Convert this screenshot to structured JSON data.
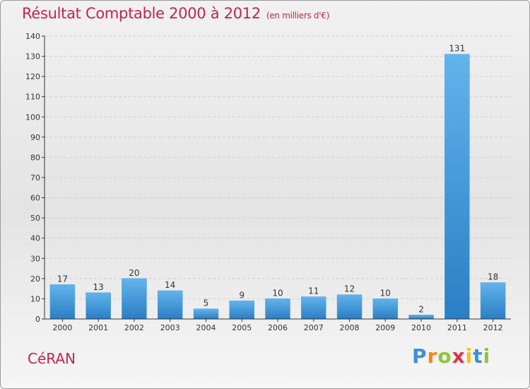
{
  "title": "Résultat Comptable 2000 à 2012",
  "subtitle": "(en milliers d'€)",
  "commune": "CéRAN",
  "logo": {
    "letters": [
      "P",
      "r",
      "o",
      "x",
      "i",
      "t",
      "i"
    ],
    "colors": [
      "#3f8fd6",
      "#f08a1c",
      "#8cc63f",
      "#e0334a",
      "#f0c419",
      "#3f8fd6",
      "#8cc63f"
    ]
  },
  "colors": {
    "bar_light": "#62b4ec",
    "bar_dark": "#2a7ec4",
    "title": "#c0254f",
    "grid": "#cfcfcf",
    "axis": "#333333"
  },
  "chart_data": {
    "type": "bar",
    "title": "Résultat Comptable 2000 à 2012",
    "subtitle": "(en milliers d'€)",
    "xlabel": "",
    "ylabel": "",
    "ylim": [
      0,
      140
    ],
    "yticks": [
      0,
      10,
      20,
      30,
      40,
      50,
      60,
      70,
      80,
      90,
      100,
      110,
      120,
      130,
      140
    ],
    "categories": [
      "2000",
      "2001",
      "2002",
      "2003",
      "2004",
      "2005",
      "2006",
      "2007",
      "2008",
      "2009",
      "2010",
      "2011",
      "2012"
    ],
    "values": [
      17,
      13,
      20,
      14,
      5,
      9,
      10,
      11,
      12,
      10,
      2,
      131,
      18
    ],
    "grid": true,
    "legend": "none"
  }
}
